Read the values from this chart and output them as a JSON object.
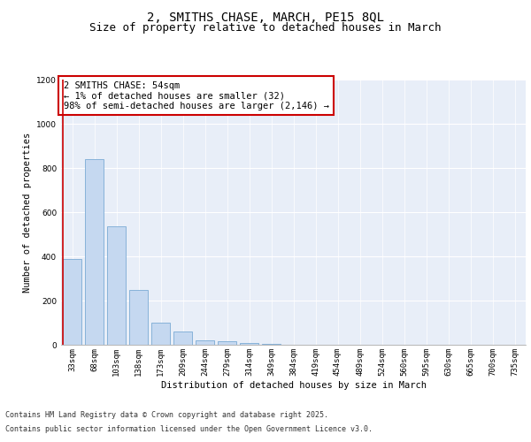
{
  "title": "2, SMITHS CHASE, MARCH, PE15 8QL",
  "subtitle": "Size of property relative to detached houses in March",
  "xlabel": "Distribution of detached houses by size in March",
  "ylabel": "Number of detached properties",
  "categories": [
    "33sqm",
    "68sqm",
    "103sqm",
    "138sqm",
    "173sqm",
    "209sqm",
    "244sqm",
    "279sqm",
    "314sqm",
    "349sqm",
    "384sqm",
    "419sqm",
    "454sqm",
    "489sqm",
    "524sqm",
    "560sqm",
    "595sqm",
    "630sqm",
    "665sqm",
    "700sqm",
    "735sqm"
  ],
  "values": [
    390,
    840,
    535,
    248,
    100,
    62,
    22,
    15,
    10,
    5,
    0,
    0,
    0,
    0,
    0,
    0,
    0,
    0,
    0,
    0,
    0
  ],
  "bar_color": "#c5d8f0",
  "bar_edge_color": "#7aaad4",
  "highlight_color": "#cc0000",
  "annotation_text": "2 SMITHS CHASE: 54sqm\n← 1% of detached houses are smaller (32)\n98% of semi-detached houses are larger (2,146) →",
  "annotation_box_color": "#ffffff",
  "annotation_box_edge": "#cc0000",
  "ylim": [
    0,
    1200
  ],
  "yticks": [
    0,
    200,
    400,
    600,
    800,
    1000,
    1200
  ],
  "fig_bg_color": "#ffffff",
  "plot_bg_color": "#e8eef8",
  "grid_color": "#ffffff",
  "footer_line1": "Contains HM Land Registry data © Crown copyright and database right 2025.",
  "footer_line2": "Contains public sector information licensed under the Open Government Licence v3.0.",
  "title_fontsize": 10,
  "subtitle_fontsize": 9,
  "axis_label_fontsize": 7.5,
  "tick_fontsize": 6.5,
  "annotation_fontsize": 7.5,
  "footer_fontsize": 6
}
